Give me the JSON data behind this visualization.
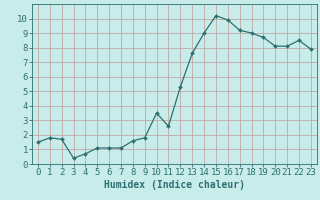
{
  "x": [
    0,
    1,
    2,
    3,
    4,
    5,
    6,
    7,
    8,
    9,
    10,
    11,
    12,
    13,
    14,
    15,
    16,
    17,
    18,
    19,
    20,
    21,
    22,
    23
  ],
  "y": [
    1.5,
    1.8,
    1.7,
    0.4,
    0.7,
    1.1,
    1.1,
    1.1,
    1.6,
    1.8,
    3.5,
    2.6,
    5.3,
    7.6,
    9.0,
    10.2,
    9.9,
    9.2,
    9.0,
    8.7,
    8.1,
    8.1,
    8.5,
    7.9
  ],
  "xlabel": "Humidex (Indice chaleur)",
  "ylim": [
    0,
    11
  ],
  "xlim": [
    -0.5,
    23.5
  ],
  "yticks": [
    0,
    1,
    2,
    3,
    4,
    5,
    6,
    7,
    8,
    9,
    10
  ],
  "xticks": [
    0,
    1,
    2,
    3,
    4,
    5,
    6,
    7,
    8,
    9,
    10,
    11,
    12,
    13,
    14,
    15,
    16,
    17,
    18,
    19,
    20,
    21,
    22,
    23
  ],
  "line_color": "#2d7070",
  "marker": "D",
  "marker_size": 2.0,
  "bg_color": "#c8ecea",
  "grid_color_major": "#c0a8a8",
  "axis_color": "#2d7070",
  "tick_label_color": "#2d7070",
  "xlabel_color": "#2d7070",
  "xlabel_fontsize": 7,
  "tick_fontsize": 6.5
}
